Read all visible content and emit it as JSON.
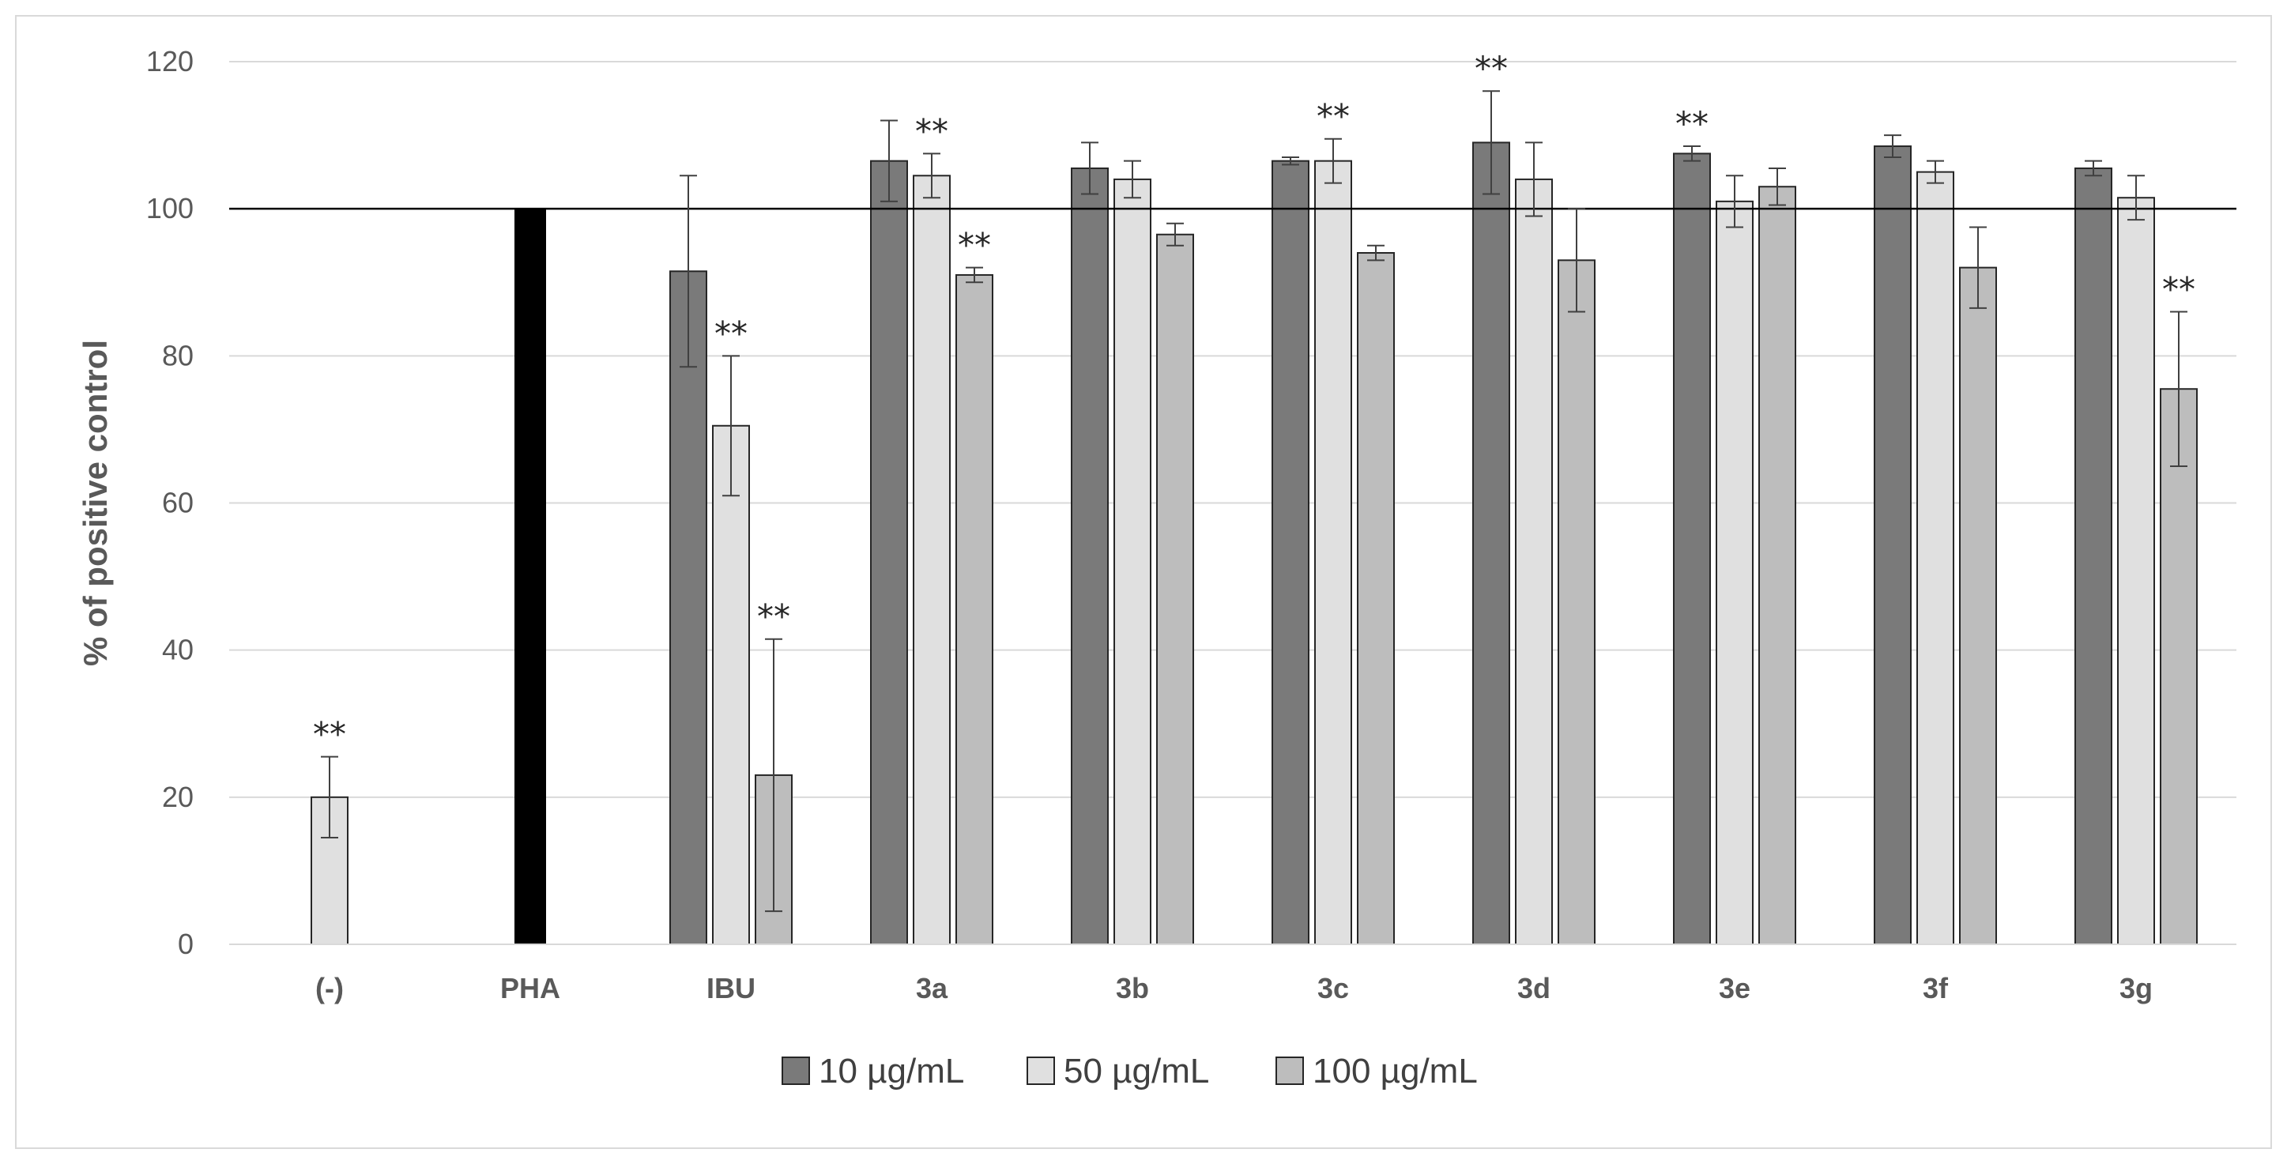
{
  "chart_data": {
    "type": "bar",
    "ylabel": "% of positive control",
    "xlabel": "",
    "ylim": [
      0,
      120
    ],
    "yticks": [
      0,
      20,
      40,
      60,
      80,
      100,
      120
    ],
    "grid": true,
    "reference_line": 100,
    "legend_position": "bottom",
    "categories": [
      "(-)",
      "PHA",
      "IBU",
      "3a",
      "3b",
      "3c",
      "3d",
      "3e",
      "3f",
      "3g"
    ],
    "series": [
      {
        "name": "10 µg/mL",
        "color": "#7a7a7a",
        "values": [
          null,
          null,
          91.5,
          106.5,
          105.5,
          106.5,
          109.0,
          107.5,
          108.5,
          105.5
        ],
        "error": [
          null,
          null,
          13.0,
          5.5,
          3.5,
          0.5,
          7.0,
          1.0,
          1.5,
          1.0
        ],
        "significant": [
          false,
          false,
          false,
          false,
          false,
          false,
          true,
          true,
          false,
          false
        ]
      },
      {
        "name": "50 µg/mL",
        "color": "#e0e0e0",
        "values": [
          20.0,
          null,
          70.5,
          104.5,
          104.0,
          106.5,
          104.0,
          101.0,
          105.0,
          101.5
        ],
        "error": [
          5.5,
          null,
          9.5,
          3.0,
          2.5,
          3.0,
          5.0,
          3.5,
          1.5,
          3.0
        ],
        "significant": [
          true,
          false,
          true,
          true,
          false,
          true,
          false,
          false,
          false,
          false
        ]
      },
      {
        "name": "100 µg/mL",
        "color": "#bdbdbd",
        "values": [
          null,
          null,
          23.0,
          91.0,
          96.5,
          94.0,
          93.0,
          103.0,
          92.0,
          75.5
        ],
        "error": [
          null,
          null,
          18.5,
          1.0,
          1.5,
          1.0,
          7.0,
          2.5,
          5.5,
          10.5
        ],
        "significant": [
          false,
          false,
          true,
          true,
          false,
          false,
          false,
          false,
          false,
          true
        ]
      }
    ],
    "positive_control": {
      "category": "PHA",
      "value": 100,
      "color": "#000000"
    },
    "significance_label": "**"
  }
}
